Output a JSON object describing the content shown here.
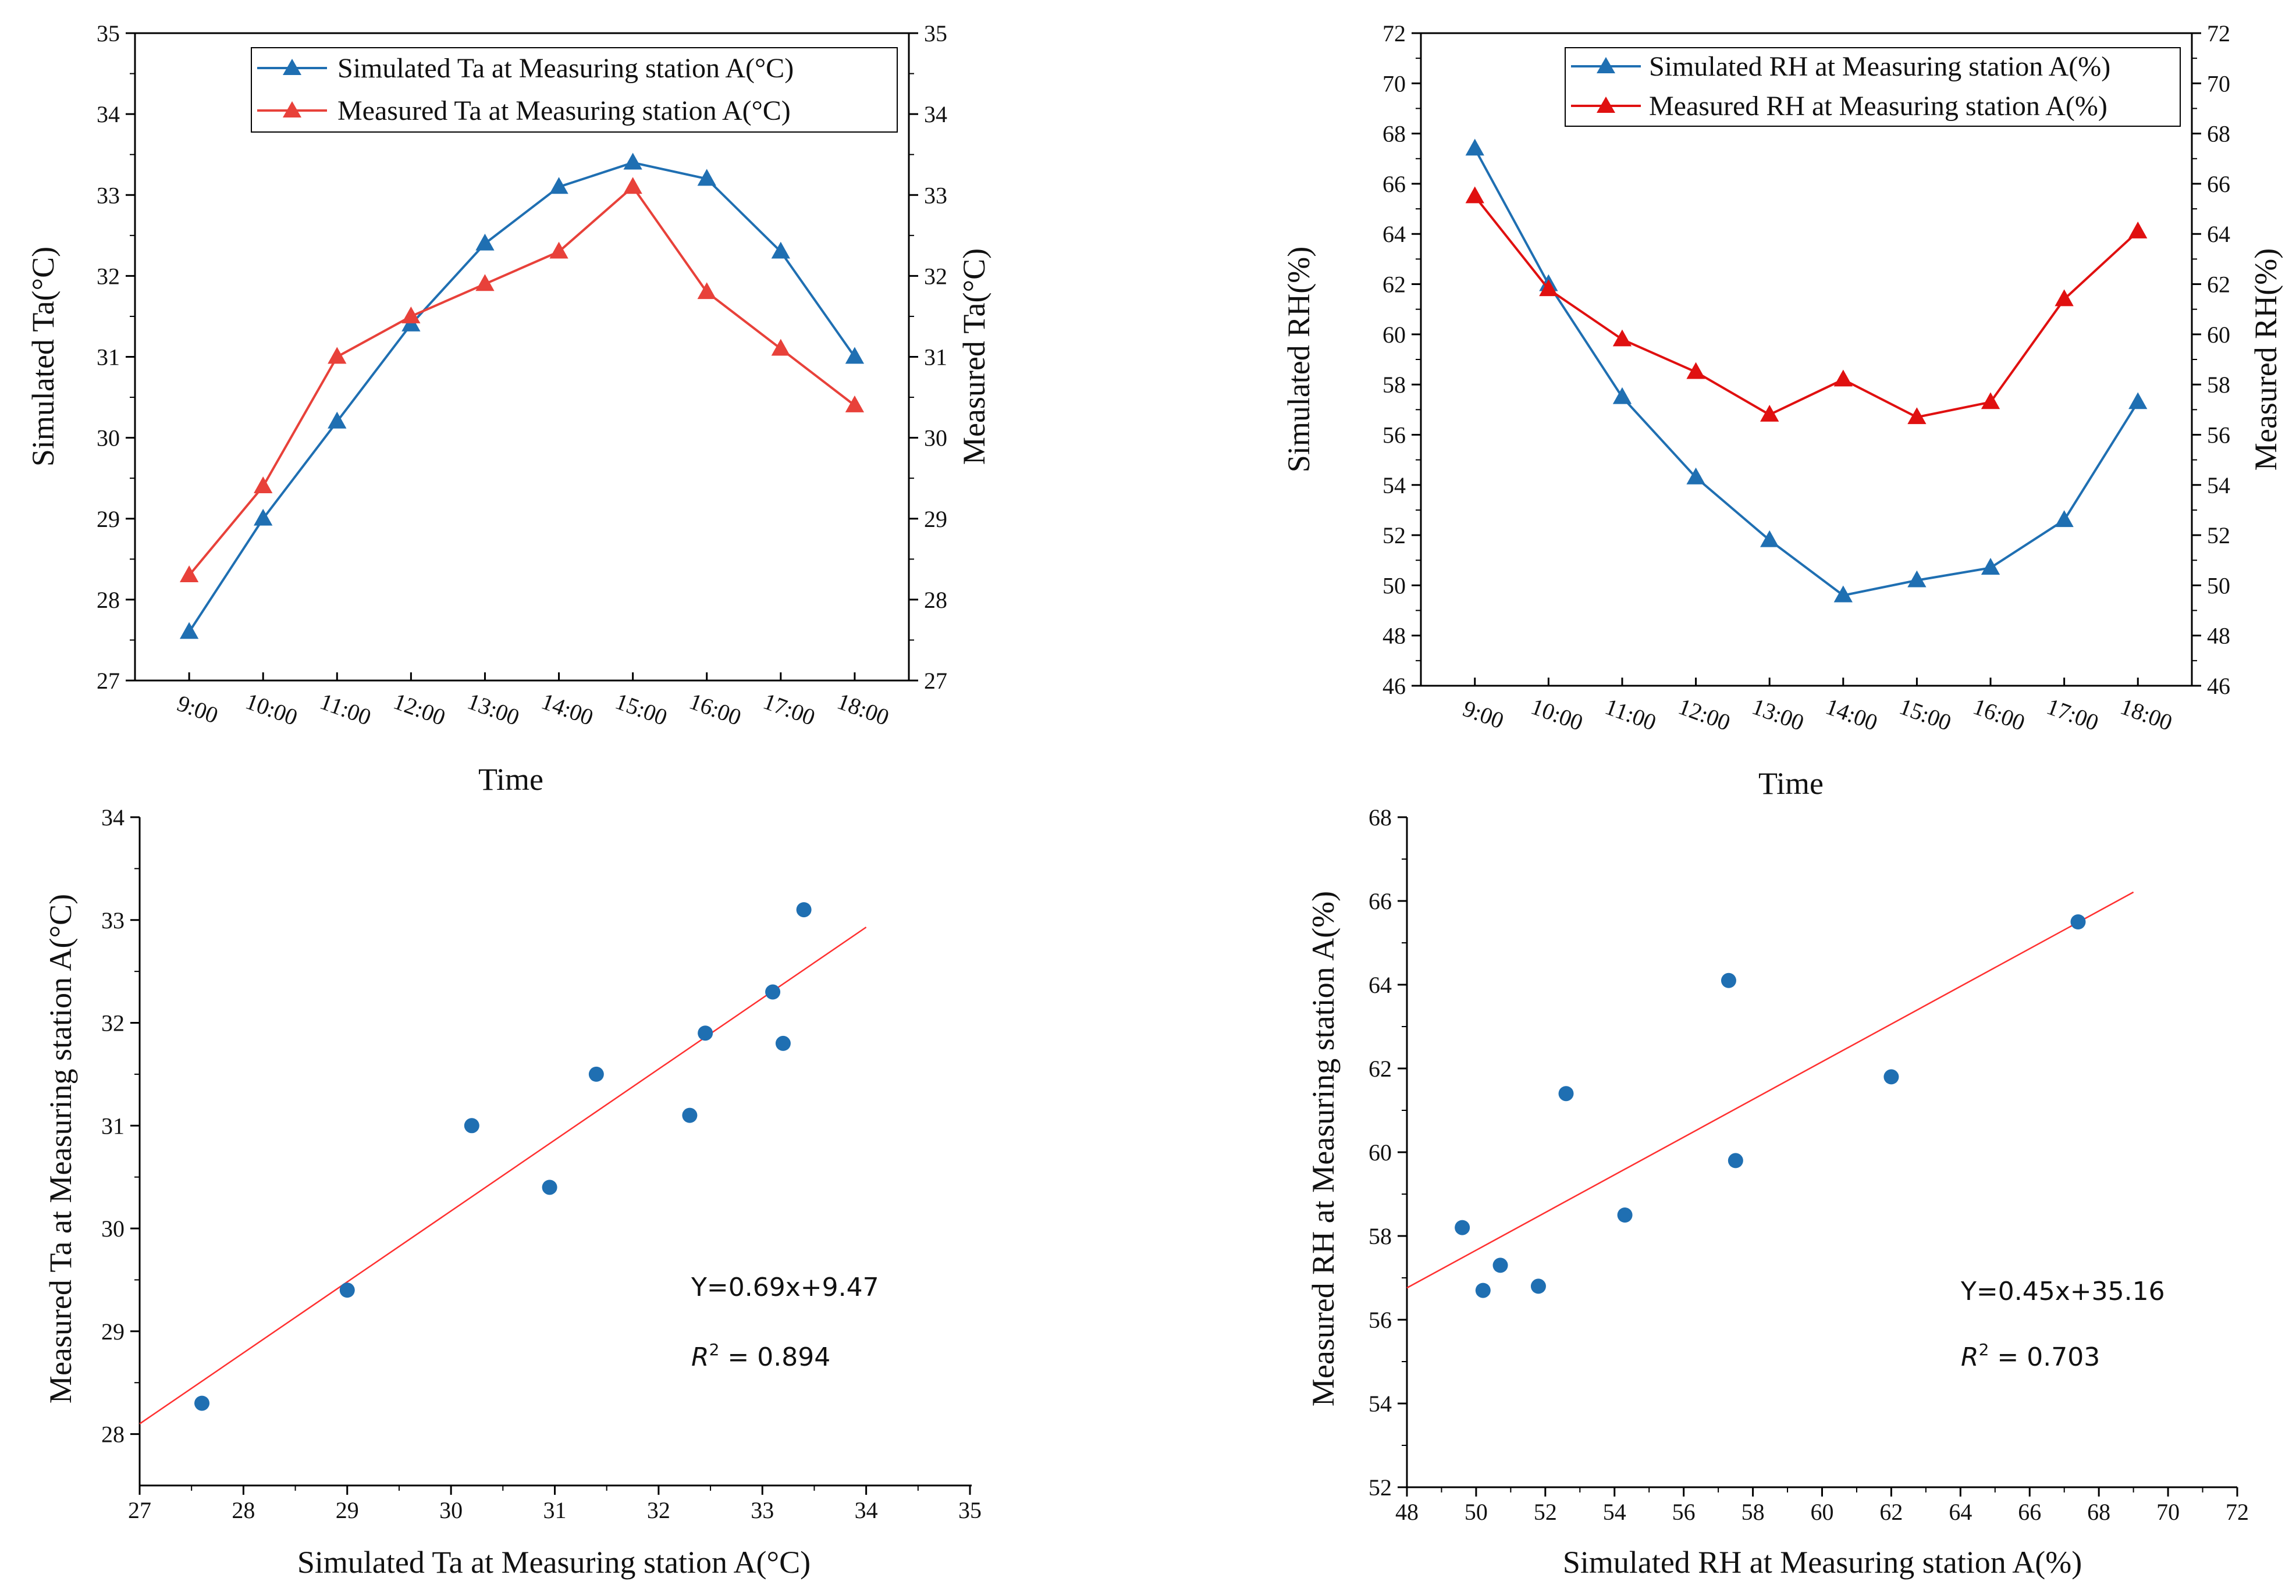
{
  "chart_data": [
    {
      "id": "ta_time",
      "type": "line",
      "categories": [
        "9:00",
        "10:00",
        "11:00",
        "12:00",
        "13:00",
        "14:00",
        "15:00",
        "16:00",
        "17:00",
        "18:00"
      ],
      "series": [
        {
          "name": "Simulated Ta at Measuring station A(°C)",
          "color": "#1f6fb2",
          "axis": "left",
          "values": [
            27.6,
            29.0,
            30.2,
            31.4,
            32.4,
            33.1,
            33.4,
            33.2,
            32.3,
            31.0
          ]
        },
        {
          "name": "Measured Ta at Measuring station A(°C)",
          "color": "#e8413a",
          "axis": "right",
          "values": [
            28.3,
            29.4,
            31.0,
            31.5,
            31.9,
            32.3,
            33.1,
            31.8,
            31.1,
            30.4
          ]
        }
      ],
      "xlabel": "Time",
      "ylabel": "Simulated Ta(°C)",
      "y2label": "Measured Ta(°C)",
      "ylim": [
        27,
        35
      ],
      "yticks": [
        "27",
        "28",
        "29",
        "30",
        "31",
        "32",
        "33",
        "34",
        "35"
      ],
      "legend": "top-right"
    },
    {
      "id": "rh_time",
      "type": "line",
      "categories": [
        "9:00",
        "10:00",
        "11:00",
        "12:00",
        "13:00",
        "14:00",
        "15:00",
        "16:00",
        "17:00",
        "18:00"
      ],
      "series": [
        {
          "name": "Simulated RH at Measuring station A(%)",
          "color": "#1f6fb2",
          "axis": "left",
          "values": [
            67.4,
            62.0,
            57.5,
            54.3,
            51.8,
            49.6,
            50.2,
            50.7,
            52.6,
            57.3
          ]
        },
        {
          "name": "Measured RH at Measuring station A(%)",
          "color": "#e01010",
          "axis": "right",
          "values": [
            65.5,
            61.8,
            59.8,
            58.5,
            56.8,
            58.2,
            56.7,
            57.3,
            61.4,
            64.1
          ]
        }
      ],
      "xlabel": "Time",
      "ylabel": "Simulated RH(%)",
      "y2label": "Measured RH(%)",
      "ylim": [
        46,
        72
      ],
      "yticks": [
        "46",
        "48",
        "50",
        "52",
        "54",
        "56",
        "58",
        "60",
        "62",
        "64",
        "66",
        "68",
        "70",
        "72"
      ],
      "legend": "top-right"
    },
    {
      "id": "ta_scatter",
      "type": "scatter",
      "points": [
        [
          27.6,
          28.3
        ],
        [
          29.0,
          29.4
        ],
        [
          30.2,
          31.0
        ],
        [
          30.95,
          30.4
        ],
        [
          31.4,
          31.5
        ],
        [
          32.3,
          31.1
        ],
        [
          32.45,
          31.9
        ],
        [
          33.1,
          32.3
        ],
        [
          33.2,
          31.8
        ],
        [
          33.4,
          33.1
        ]
      ],
      "point_color": "#1f6fb2",
      "fit": {
        "slope": 0.69,
        "intercept": 9.47,
        "x_range": [
          27,
          34
        ],
        "color": "#ff3030"
      },
      "equation": "Y=0.69x+9.47",
      "r2_label": "R",
      "r2_sup": "2",
      "r2_value": " = 0.894",
      "xlabel": "Simulated Ta at Measuring station A(°C)",
      "ylabel": "Measured Ta at Measuring station A(°C)",
      "xlim": [
        27,
        35
      ],
      "ylim": [
        27.5,
        34
      ],
      "xticks": [
        "27",
        "28",
        "29",
        "30",
        "31",
        "32",
        "33",
        "34",
        "35"
      ],
      "yticks": [
        "28",
        "29",
        "30",
        "31",
        "32",
        "33",
        "34"
      ]
    },
    {
      "id": "rh_scatter",
      "type": "scatter",
      "points": [
        [
          49.6,
          58.2
        ],
        [
          50.2,
          56.7
        ],
        [
          50.7,
          57.3
        ],
        [
          51.8,
          56.8
        ],
        [
          52.6,
          61.4
        ],
        [
          54.3,
          58.5
        ],
        [
          57.3,
          64.1
        ],
        [
          57.5,
          59.8
        ],
        [
          62.0,
          61.8
        ],
        [
          67.4,
          65.5
        ]
      ],
      "point_color": "#1f6fb2",
      "fit": {
        "slope": 0.45,
        "intercept": 35.16,
        "x_range": [
          48,
          69
        ],
        "color": "#ff3030"
      },
      "equation": "Y=0.45x+35.16",
      "r2_label": "R",
      "r2_sup": "2",
      "r2_value": " = 0.703",
      "xlabel": "Simulated RH at Measuring station A(%)",
      "ylabel": "Measured RH at Measuring station A(%)",
      "xlim": [
        48,
        72
      ],
      "ylim": [
        52,
        68
      ],
      "xticks": [
        "48",
        "50",
        "52",
        "54",
        "56",
        "58",
        "60",
        "62",
        "64",
        "66",
        "68",
        "70",
        "72"
      ],
      "yticks": [
        "52",
        "54",
        "56",
        "58",
        "60",
        "62",
        "64",
        "66",
        "68"
      ]
    }
  ]
}
